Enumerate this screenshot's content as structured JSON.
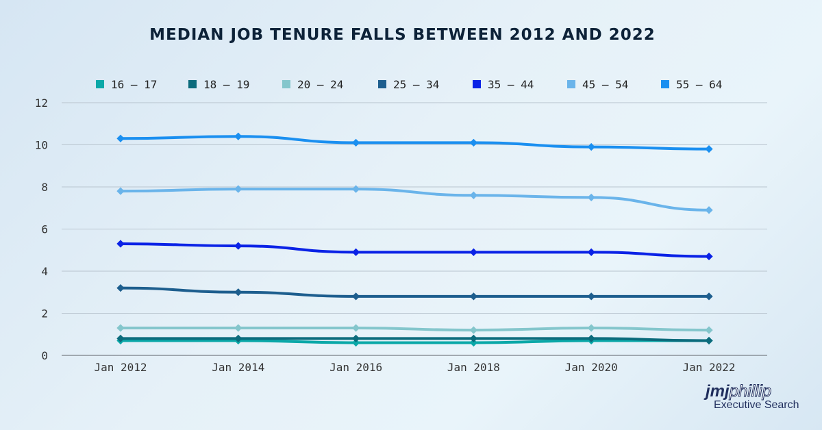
{
  "chart_data": {
    "type": "line",
    "title": "MEDIAN JOB TENURE FALLS BETWEEN 2012 AND 2022",
    "categories": [
      "Jan 2012",
      "Jan 2014",
      "Jan 2016",
      "Jan 2018",
      "Jan 2020",
      "Jan 2022"
    ],
    "ylim": [
      0,
      12
    ],
    "yticks": [
      0,
      2,
      4,
      6,
      8,
      10,
      12
    ],
    "grid": true,
    "legend": "top",
    "series": [
      {
        "name": "16 – 17",
        "color": "#0aa8a8",
        "values": [
          0.7,
          0.7,
          0.6,
          0.6,
          0.7,
          0.7
        ]
      },
      {
        "name": "18 – 19",
        "color": "#0b6b7c",
        "values": [
          0.8,
          0.8,
          0.8,
          0.8,
          0.8,
          0.7
        ]
      },
      {
        "name": "20 – 24",
        "color": "#84c6cc",
        "values": [
          1.3,
          1.3,
          1.3,
          1.2,
          1.3,
          1.2
        ]
      },
      {
        "name": "25 – 34",
        "color": "#1d5e8e",
        "values": [
          3.2,
          3.0,
          2.8,
          2.8,
          2.8,
          2.8
        ]
      },
      {
        "name": "35 – 44",
        "color": "#0a22e6",
        "values": [
          5.3,
          5.2,
          4.9,
          4.9,
          4.9,
          4.7
        ]
      },
      {
        "name": "45 – 54",
        "color": "#6ab4ea",
        "values": [
          7.8,
          7.9,
          7.9,
          7.6,
          7.5,
          6.9
        ]
      },
      {
        "name": "55 – 64",
        "color": "#1a8ff0",
        "values": [
          10.3,
          10.4,
          10.1,
          10.1,
          9.9,
          9.8
        ]
      }
    ]
  },
  "logo": {
    "brand_bold": "jmj",
    "brand_outline": "phillip",
    "subtitle": "Executive Search"
  }
}
